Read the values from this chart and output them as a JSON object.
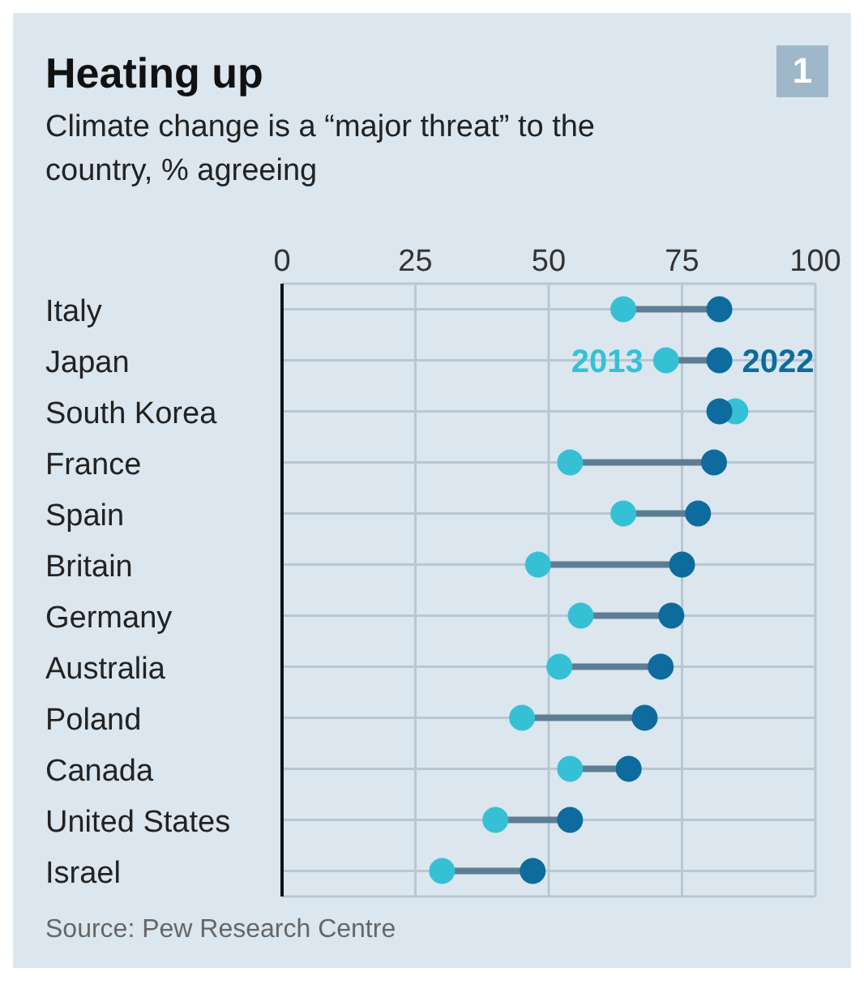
{
  "chart_data": {
    "type": "scatter",
    "title": "Heating up",
    "subtitle": "Climate change is a “major threat” to the country, % agreeing",
    "categories": [
      "Italy",
      "Japan",
      "South Korea",
      "France",
      "Spain",
      "Britain",
      "Germany",
      "Australia",
      "Poland",
      "Canada",
      "United States",
      "Israel"
    ],
    "series": [
      {
        "name": "2013",
        "color": "#36c0d6",
        "values": [
          64,
          72,
          85,
          54,
          64,
          48,
          56,
          52,
          45,
          54,
          40,
          30
        ]
      },
      {
        "name": "2022",
        "color": "#0d6b9e",
        "values": [
          82,
          82,
          82,
          81,
          78,
          75,
          73,
          71,
          68,
          65,
          54,
          47
        ]
      }
    ],
    "orientation": "horizontal",
    "xlim": [
      0,
      100
    ],
    "xticks": [
      0,
      25,
      50,
      75,
      100
    ],
    "grid": true,
    "marker": "circle",
    "annotations": [
      "1",
      "Source: Pew Research Centre"
    ]
  }
}
